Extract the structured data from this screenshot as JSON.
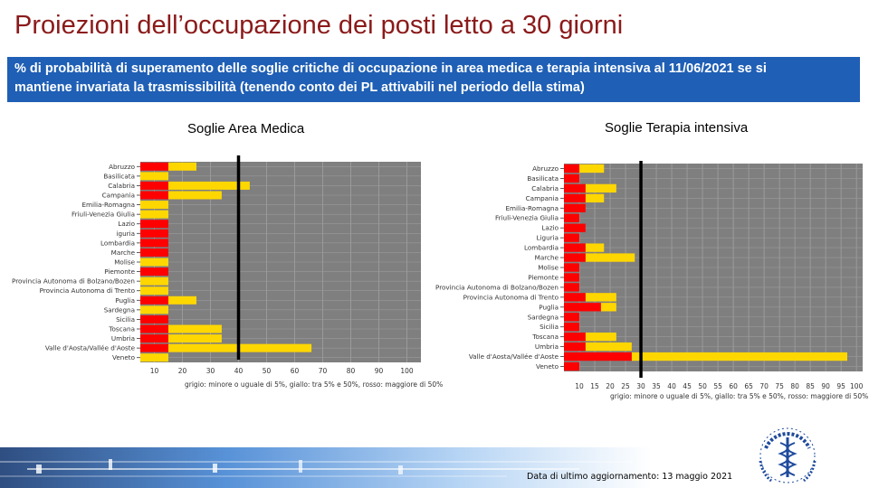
{
  "slide": {
    "title": "Proiezioni dell’occupazione dei posti letto a 30 giorni",
    "banner_line1": "% di probabilità di superamento delle soglie critiche di occupazione in area medica e terapia intensiva al 11/06/2021 se si",
    "banner_line2": "mantiene invariata la trasmissibilità (tenendo conto dei PL attivabili nel periodo della stima)",
    "update_note": "Data di ultimo aggiornamento: 13 maggio 2021"
  },
  "colors": {
    "grey": "#7f7f7f",
    "yellow": "#ffd700",
    "red": "#ff0000",
    "panel_bg": "#7f7f7f",
    "title_red": "#8B1A1A",
    "banner_blue": "#1f5fb5"
  },
  "chart_data": [
    {
      "type": "bar",
      "orientation": "horizontal",
      "title": "Soglie Area Medica",
      "categories": [
        "Abruzzo",
        "Basilicata",
        "Calabria",
        "Campania",
        "Emilia-Romagna",
        "Friuli Venezia Giulia",
        "Lazio",
        "Liguria",
        "Lombardia",
        "Marche",
        "Molise",
        "Piemonte",
        "Provincia Autonoma di Bolzano/Bozen",
        "Provincia Autonoma di Trento",
        "Puglia",
        "Sardegna",
        "Sicilia",
        "Toscana",
        "Umbria",
        "Valle d'Aosta/Vallée d'Aoste",
        "Veneto"
      ],
      "category_labels": [
        "Abruzzo",
        "Basilicata",
        "Calabria",
        "Campania",
        "Emilia-Romagna",
        "Friuli-Venezia Giulia",
        "Lazio",
        "iguria",
        "Lombardia",
        "Marche",
        "Molise",
        "Piemonte",
        "Provincia Autonoma di Bolzano/Bozen",
        "Provincia Autonoma di Trento",
        "Puglia",
        "Sardegna",
        "Sicilia",
        "Toscana",
        "Umbria",
        "Valle d'Aosta/Vallée d'Aoste",
        "Veneto"
      ],
      "segments": [
        {
          "red": 15,
          "yellow": 25
        },
        {
          "red": 5,
          "yellow": 15
        },
        {
          "red": 15,
          "yellow": 44
        },
        {
          "red": 15,
          "yellow": 34
        },
        {
          "red": 5,
          "yellow": 15
        },
        {
          "red": 5,
          "yellow": 15
        },
        {
          "red": 15,
          "yellow": 15
        },
        {
          "red": 15,
          "yellow": 15
        },
        {
          "red": 15,
          "yellow": 15
        },
        {
          "red": 15,
          "yellow": 15
        },
        {
          "red": 5,
          "yellow": 15
        },
        {
          "red": 15,
          "yellow": 15
        },
        {
          "red": 5,
          "yellow": 15
        },
        {
          "red": 5,
          "yellow": 15
        },
        {
          "red": 15,
          "yellow": 25
        },
        {
          "red": 5,
          "yellow": 15
        },
        {
          "red": 15,
          "yellow": 15
        },
        {
          "red": 15,
          "yellow": 34
        },
        {
          "red": 15,
          "yellow": 34
        },
        {
          "red": 15,
          "yellow": 66
        },
        {
          "red": 5,
          "yellow": 15
        }
      ],
      "xticks": [
        10,
        20,
        30,
        40,
        50,
        60,
        70,
        80,
        90,
        100
      ],
      "xlim": [
        5,
        105
      ],
      "threshold": 40,
      "caption": "grigio: minore o uguale di 5%, giallo: tra 5% e 50%, rosso: maggiore di 50%"
    },
    {
      "type": "bar",
      "orientation": "horizontal",
      "title": "Soglie Terapia intensiva",
      "categories": [
        "Abruzzo",
        "Basilicata",
        "Calabria",
        "Campania",
        "Emilia-Romagna",
        "Friuli Venezia Giulia",
        "Lazio",
        "Liguria",
        "Lombardia",
        "Marche",
        "Molise",
        "Piemonte",
        "Provincia Autonoma di Bolzano/Bozen",
        "Provincia Autonoma di Trento",
        "Puglia",
        "Sardegna",
        "Sicilia",
        "Toscana",
        "Umbria",
        "Valle d'Aosta/Vallée d'Aoste",
        "Veneto"
      ],
      "category_labels": [
        "Abruzzo",
        "Basilicata",
        "Calabria",
        "Campania",
        "Emilia-Romagna",
        "Friuli-Venezia Giulia",
        "Lazio",
        "Liguria",
        "Lombardia",
        "Marche",
        "Molise",
        "Piemonte",
        "Provincia Autonoma di Bolzano/Bozen",
        "Provincia Autonoma di Trento",
        "Puglia",
        "Sardegna",
        "Sicilia",
        "Toscana",
        "Umbria",
        "Valle d'Aosta/Vallée d'Aoste",
        "Veneto"
      ],
      "segments": [
        {
          "red": 10,
          "yellow": 18
        },
        {
          "red": 10,
          "yellow": 10
        },
        {
          "red": 12,
          "yellow": 22
        },
        {
          "red": 12,
          "yellow": 18
        },
        {
          "red": 12,
          "yellow": 12
        },
        {
          "red": 10,
          "yellow": 10
        },
        {
          "red": 12,
          "yellow": 12
        },
        {
          "red": 10,
          "yellow": 10
        },
        {
          "red": 12,
          "yellow": 18
        },
        {
          "red": 12,
          "yellow": 28
        },
        {
          "red": 10,
          "yellow": 10
        },
        {
          "red": 10,
          "yellow": 10
        },
        {
          "red": 10,
          "yellow": 10
        },
        {
          "red": 12,
          "yellow": 22
        },
        {
          "red": 17,
          "yellow": 22
        },
        {
          "red": 10,
          "yellow": 10
        },
        {
          "red": 10,
          "yellow": 10
        },
        {
          "red": 12,
          "yellow": 22
        },
        {
          "red": 12,
          "yellow": 27
        },
        {
          "red": 27,
          "yellow": 97
        },
        {
          "red": 10,
          "yellow": 10
        }
      ],
      "xticks": [
        10,
        15,
        20,
        25,
        30,
        35,
        40,
        45,
        50,
        55,
        60,
        65,
        70,
        75,
        80,
        85,
        90,
        95,
        100
      ],
      "xlim": [
        5,
        102
      ],
      "threshold": 30,
      "caption": "grigio: minore o uguale di 5%, giallo: tra 5% e 50%, rosso: maggiore di 50%"
    }
  ]
}
